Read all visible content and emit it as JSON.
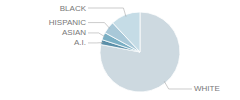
{
  "chart_data": {
    "type": "pie",
    "categories": [
      "WHITE",
      "A.I.",
      "ASIAN",
      "HISPANIC",
      "BLACK"
    ],
    "values": [
      78,
      2,
      3,
      5,
      12
    ],
    "colors": [
      "#cdd9e0",
      "#5b8fa8",
      "#7aafc4",
      "#a8c8d8",
      "#c5dce6"
    ]
  }
}
